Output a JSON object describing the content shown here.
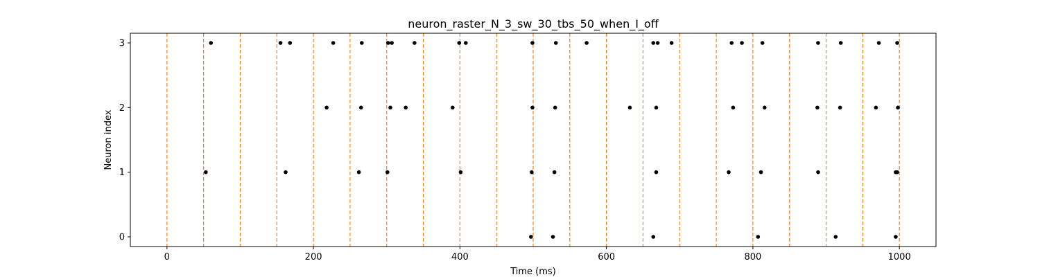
{
  "chart_data": {
    "type": "scatter",
    "title": "neuron_raster_N_3_sw_30_tbs_50_when_I_off",
    "xlabel": "Time (ms)",
    "ylabel": "Neuron index",
    "xlim": [
      -50,
      1050
    ],
    "ylim": [
      -0.15,
      3.15
    ],
    "x_ticks": [
      0,
      200,
      400,
      600,
      800,
      1000
    ],
    "y_ticks": [
      0,
      1,
      2,
      3
    ],
    "grid": false,
    "spike_color": "#000000",
    "boundary_color": "#ff7f0e",
    "boundaries": [
      0,
      50,
      100,
      150,
      200,
      250,
      300,
      350,
      400,
      450,
      500,
      550,
      600,
      650,
      700,
      750,
      800,
      850,
      900,
      950,
      1000
    ],
    "series": [
      {
        "neuron": 0,
        "x": [
          497,
          527,
          664,
          807,
          913,
          995
        ]
      },
      {
        "neuron": 1,
        "x": [
          53,
          162,
          262,
          301,
          401,
          498,
          529,
          668,
          767,
          811,
          889,
          995,
          997
        ]
      },
      {
        "neuron": 2,
        "x": [
          218,
          265,
          305,
          326,
          390,
          499,
          530,
          632,
          668,
          773,
          816,
          888,
          919,
          968,
          998
        ]
      },
      {
        "neuron": 3,
        "x": [
          60,
          155,
          168,
          227,
          266,
          302,
          307,
          338,
          399,
          408,
          499,
          531,
          573,
          664,
          670,
          689,
          771,
          785,
          813,
          889,
          920,
          972,
          997
        ]
      }
    ]
  }
}
